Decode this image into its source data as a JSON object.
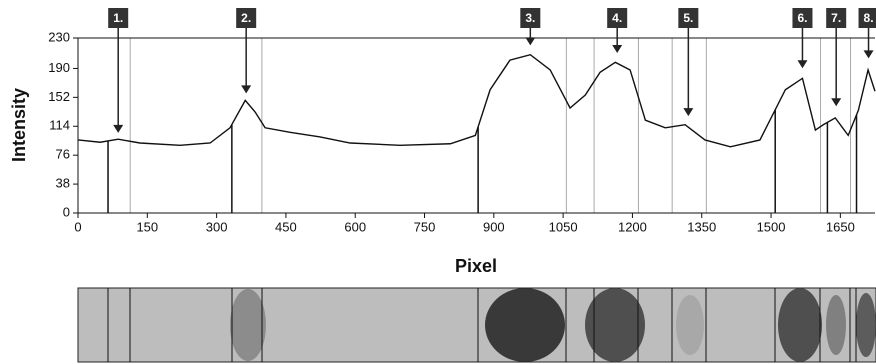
{
  "chart_data": {
    "type": "line",
    "x_label": "Pixel",
    "y_label": "Intensity",
    "xlim": [
      0,
      1725
    ],
    "ylim": [
      0,
      230
    ],
    "xticks": [
      0,
      150,
      300,
      450,
      600,
      750,
      900,
      1050,
      1200,
      1350,
      1500,
      1650
    ],
    "yticks": [
      0,
      38,
      76,
      114,
      152,
      190,
      230
    ],
    "series": [
      {
        "color": "#111111",
        "x": [
          0,
          48,
          87,
          134,
          221,
          286,
          329,
          362,
          383,
          405,
          459,
          524,
          589,
          697,
          806,
          860,
          892,
          935,
          979,
          1022,
          1065,
          1098,
          1130,
          1163,
          1195,
          1228,
          1271,
          1314,
          1357,
          1412,
          1476,
          1531,
          1568,
          1596,
          1613,
          1639,
          1667,
          1689,
          1710,
          1725
        ],
        "values": [
          96,
          93,
          97,
          92,
          89,
          92,
          112,
          148,
          133,
          112,
          106,
          100,
          92,
          89,
          91,
          102,
          162,
          201,
          208,
          188,
          138,
          155,
          185,
          198,
          188,
          122,
          112,
          116,
          96,
          87,
          96,
          162,
          177,
          109,
          116,
          125,
          102,
          135,
          188,
          160
        ]
      }
    ],
    "boundaries_dark": [
      65,
      333,
      866,
      1509,
      1622,
      1685
    ],
    "boundaries_light": [
      113,
      398,
      1057,
      1117,
      1213,
      1286,
      1360,
      1607,
      1672
    ],
    "annotations": [
      {
        "label": "1.",
        "x": 87,
        "y": 100
      },
      {
        "label": "2.",
        "x": 364,
        "y": 152
      },
      {
        "label": "3.",
        "x": 979,
        "y": 215
      },
      {
        "label": "4.",
        "x": 1167,
        "y": 205
      },
      {
        "label": "5.",
        "x": 1321,
        "y": 122
      },
      {
        "label": "6.",
        "x": 1568,
        "y": 185
      },
      {
        "label": "7.",
        "x": 1641,
        "y": 135
      },
      {
        "label": "8.",
        "x": 1711,
        "y": 198
      }
    ]
  }
}
